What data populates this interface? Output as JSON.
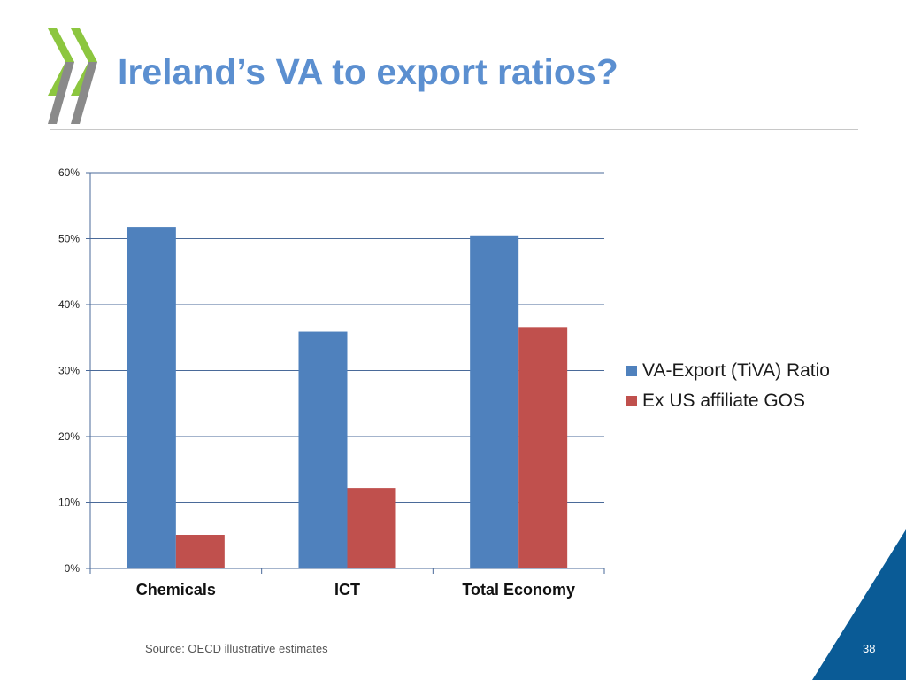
{
  "slide": {
    "title": "Ireland’s VA to export ratios?",
    "source": "Source: OECD illustrative estimates",
    "page_number": "38",
    "brand_colors": {
      "title": "#5b8fd0",
      "logo_green": "#8cc63f",
      "logo_gray": "#8a8a8a",
      "corner_blue": "#0a5b96"
    }
  },
  "chart_data": {
    "type": "bar",
    "categories": [
      "Chemicals",
      "ICT",
      "Total Economy"
    ],
    "series": [
      {
        "name": "VA-Export (TiVA) Ratio",
        "color": "#4f81bd",
        "values": [
          0.518,
          0.359,
          0.505
        ]
      },
      {
        "name": "Ex US affiliate GOS",
        "color": "#c0504d",
        "values": [
          0.051,
          0.122,
          0.366
        ]
      }
    ],
    "ylim": [
      0,
      0.6
    ],
    "yticks": [
      0,
      0.1,
      0.2,
      0.3,
      0.4,
      0.5,
      0.6
    ],
    "ytick_labels": [
      "0%",
      "10%",
      "20%",
      "30%",
      "40%",
      "50%",
      "60%"
    ],
    "grid": true,
    "legend_position": "right",
    "xlabel": "",
    "ylabel": ""
  }
}
